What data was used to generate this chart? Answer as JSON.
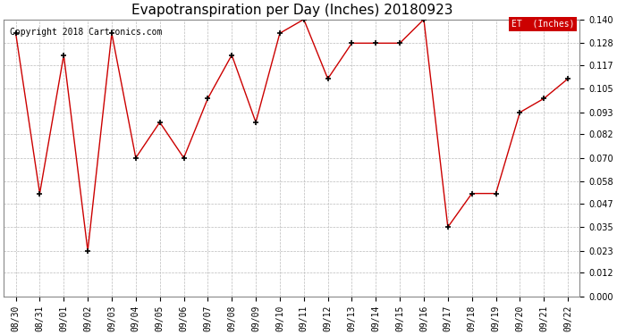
{
  "title": "Evapotranspiration per Day (Inches) 20180923",
  "copyright": "Copyright 2018 Cartronics.com",
  "legend_label": "ET  (Inches)",
  "x_labels": [
    "08/30",
    "08/31",
    "09/01",
    "09/02",
    "09/03",
    "09/04",
    "09/05",
    "09/06",
    "09/07",
    "09/08",
    "09/09",
    "09/10",
    "09/11",
    "09/12",
    "09/13",
    "09/14",
    "09/15",
    "09/16",
    "09/17",
    "09/18",
    "09/19",
    "09/20",
    "09/21",
    "09/22"
  ],
  "y_values": [
    0.133,
    0.052,
    0.122,
    0.023,
    0.133,
    0.07,
    0.088,
    0.07,
    0.1,
    0.122,
    0.088,
    0.133,
    0.14,
    0.11,
    0.128,
    0.128,
    0.128,
    0.14,
    0.035,
    0.052,
    0.052,
    0.093,
    0.1,
    0.11
  ],
  "line_color": "#CC0000",
  "marker_color": "#000000",
  "bg_color": "#FFFFFF",
  "grid_color": "#BBBBBB",
  "ylim": [
    0.0,
    0.14
  ],
  "yticks": [
    0.0,
    0.012,
    0.023,
    0.035,
    0.047,
    0.058,
    0.07,
    0.082,
    0.093,
    0.105,
    0.117,
    0.128,
    0.14
  ],
  "legend_bg": "#CC0000",
  "legend_text_color": "#FFFFFF",
  "title_fontsize": 11,
  "tick_fontsize": 7,
  "copyright_fontsize": 7
}
